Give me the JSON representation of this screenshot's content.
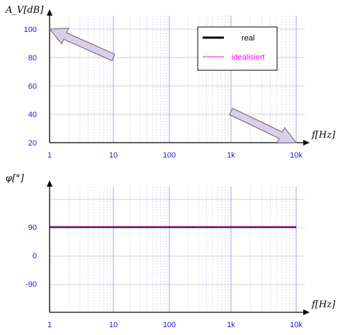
{
  "chart_data": [
    {
      "type": "line",
      "x_scale": "log",
      "xlim": [
        1,
        10000
      ],
      "ylim": [
        20,
        100
      ],
      "xlabel": "f[Hz]",
      "ylabel": "A_V[dB]",
      "x_ticks": [
        "1",
        "10",
        "100",
        "1k",
        "10k"
      ],
      "x_tick_values": [
        1,
        10,
        100,
        1000,
        10000
      ],
      "y_ticks": [
        "20",
        "40",
        "60",
        "80",
        "100"
      ],
      "y_tick_values": [
        20,
        40,
        60,
        80,
        100
      ],
      "grid": true,
      "legend_position": "top-right",
      "series": [
        {
          "name": "real",
          "color": "#000000",
          "x": [
            1,
            10000
          ],
          "y": [
            null,
            null
          ]
        },
        {
          "name": "idealisiert",
          "color": "#ff00ff",
          "x": [
            1,
            10000
          ],
          "y": [
            null,
            null
          ]
        }
      ],
      "annotations": [
        {
          "type": "arrow",
          "from": [
            10,
            80
          ],
          "to": [
            1,
            100
          ],
          "color": "#d9cfe6"
        },
        {
          "type": "arrow",
          "from": [
            1000,
            42
          ],
          "to": [
            10000,
            20
          ],
          "color": "#d9cfe6"
        }
      ]
    },
    {
      "type": "line",
      "x_scale": "log",
      "xlim": [
        1,
        10000
      ],
      "ylim": [
        -110,
        110
      ],
      "xlabel": "f[Hz]",
      "ylabel": "φ[°]",
      "x_ticks": [
        "1",
        "10",
        "100",
        "1k",
        "10k"
      ],
      "x_tick_values": [
        1,
        10,
        100,
        1000,
        10000
      ],
      "y_ticks": [
        "90",
        "0",
        "-90"
      ],
      "y_tick_values": [
        90,
        0,
        -90
      ],
      "grid": true,
      "series": [
        {
          "name": "real",
          "color": "#000000",
          "x": [
            1,
            10000
          ],
          "y": [
            90,
            90
          ]
        },
        {
          "name": "idealisiert",
          "color": "#ff00ff",
          "x": [
            1,
            10000
          ],
          "y": [
            90,
            90
          ]
        }
      ]
    }
  ],
  "legend": {
    "items": [
      {
        "label": "real",
        "color": "#000000",
        "text_color": "#000000"
      },
      {
        "label": "idealisiert",
        "color": "#ff00ff",
        "text_color": "#ff00ff"
      }
    ]
  },
  "colors": {
    "tick_label": "#1a1ae6",
    "grid_major": "#9999dd",
    "grid_horizontal": "#cfcfcf",
    "arrow_fill": "#d9cfe6",
    "arrow_stroke": "#6a5a7a"
  }
}
